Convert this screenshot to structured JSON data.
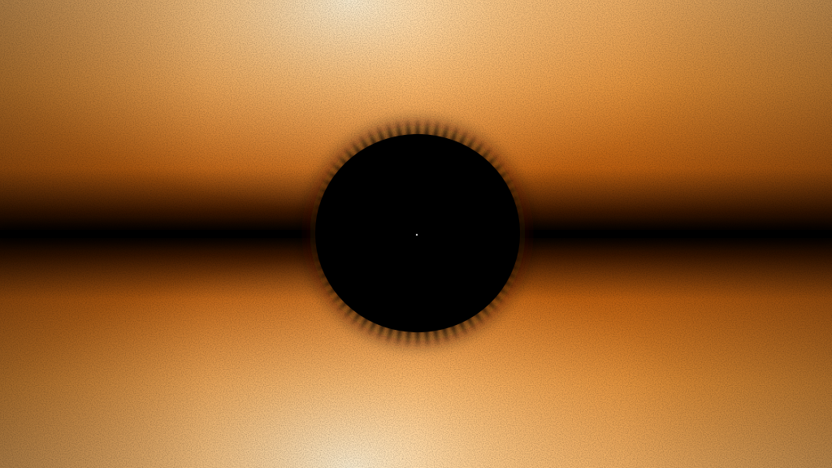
{
  "scene": {
    "description_label": "orange-gradient-with-black-spiky-sphere",
    "colors": {
      "glow_center": "#fff0cc",
      "glow_mid": "#ffc880",
      "orange": "#f08a1e",
      "dark_orange": "#c05a00",
      "black": "#000000"
    },
    "ray_count": 72
  }
}
